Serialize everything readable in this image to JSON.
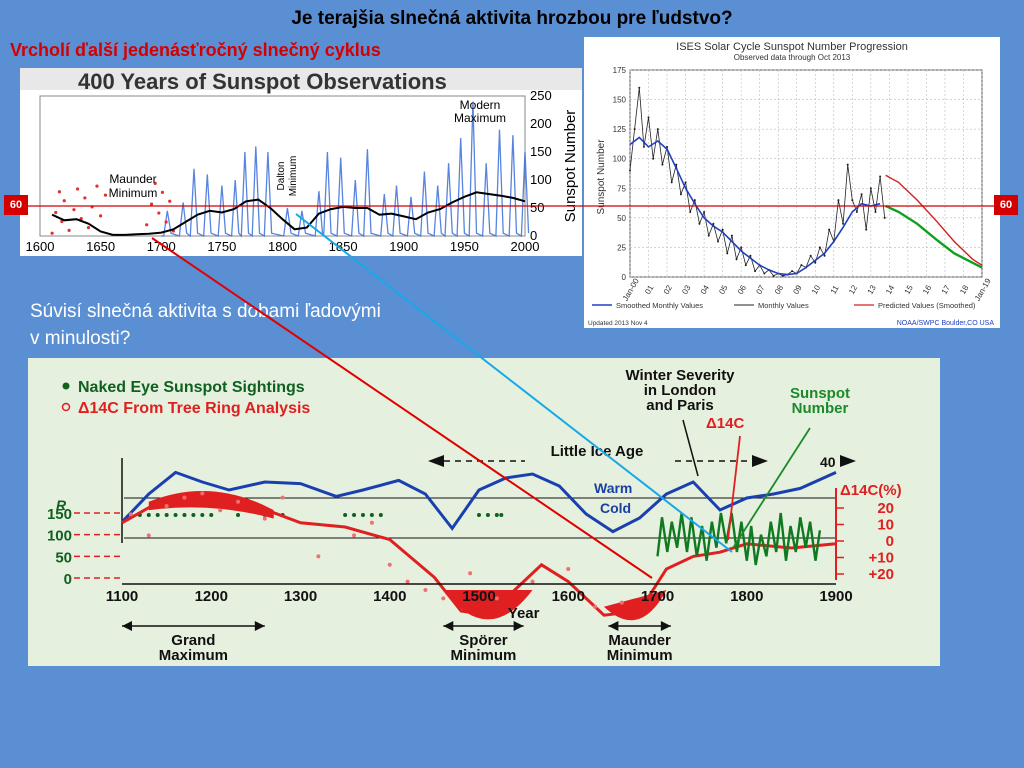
{
  "slide": {
    "title": "Je terajšia slnečná aktivita hrozbou pre ľudstvo?",
    "subtitle": "Vrcholí ďalší jedenásťročný slnečný cyklus",
    "question_line1": "Súvisí slnečná aktivita s dobami ľadovými",
    "question_line2": "v minulosti?",
    "marker_label": "60",
    "colors": {
      "background": "#5b8fd4",
      "subtitle": "#d40000",
      "marker": "#d40000",
      "arrow_red": "#e00000",
      "arrow_blue": "#18a8e8"
    }
  },
  "chart_data": [
    {
      "type": "line",
      "title": "400 Years of Sunspot Observations",
      "ylabel": "Sunspot Number",
      "xlim": [
        1600,
        2000
      ],
      "ylim": [
        0,
        250
      ],
      "x_ticks": [
        "1600",
        "1650",
        "1700",
        "1750",
        "1800",
        "1850",
        "1900",
        "1950",
        "2000"
      ],
      "y_ticks": [
        "0",
        "50",
        "100",
        "150",
        "200",
        "250"
      ],
      "annotations": [
        {
          "text": "Maunder",
          "x": 1660
        },
        {
          "text": "Minimum",
          "x": 1660
        },
        {
          "text": "Dalton",
          "x": 1810
        },
        {
          "text": "Minimum",
          "x": 1810
        },
        {
          "text": "Modern",
          "x": 1960
        },
        {
          "text": "Maximum",
          "x": 1960
        }
      ],
      "smoothed_x": [
        1610,
        1620,
        1630,
        1640,
        1650,
        1660,
        1670,
        1680,
        1690,
        1700,
        1710,
        1720,
        1730,
        1740,
        1750,
        1760,
        1770,
        1780,
        1790,
        1800,
        1810,
        1820,
        1830,
        1840,
        1850,
        1860,
        1870,
        1880,
        1890,
        1900,
        1910,
        1920,
        1930,
        1940,
        1950,
        1960,
        1970,
        1980,
        1990,
        2000
      ],
      "smoothed_y": [
        38,
        28,
        30,
        22,
        8,
        2,
        2,
        3,
        4,
        6,
        12,
        25,
        38,
        45,
        42,
        48,
        62,
        65,
        50,
        30,
        12,
        15,
        40,
        48,
        52,
        50,
        50,
        38,
        40,
        35,
        30,
        42,
        48,
        60,
        70,
        78,
        75,
        72,
        68,
        62
      ],
      "cycle_peaks": [
        [
          1705,
          45
        ],
        [
          1718,
          60
        ],
        [
          1727,
          120
        ],
        [
          1738,
          110
        ],
        [
          1750,
          90
        ],
        [
          1761,
          100
        ],
        [
          1769,
          150
        ],
        [
          1778,
          160
        ],
        [
          1788,
          150
        ],
        [
          1804,
          50
        ],
        [
          1816,
          45
        ],
        [
          1830,
          80
        ],
        [
          1837,
          150
        ],
        [
          1848,
          140
        ],
        [
          1860,
          100
        ],
        [
          1870,
          155
        ],
        [
          1884,
          75
        ],
        [
          1894,
          90
        ],
        [
          1906,
          70
        ],
        [
          1917,
          115
        ],
        [
          1928,
          90
        ],
        [
          1937,
          130
        ],
        [
          1947,
          175
        ],
        [
          1957,
          240
        ],
        [
          1968,
          130
        ],
        [
          1979,
          190
        ],
        [
          1990,
          180
        ],
        [
          2000,
          150
        ]
      ],
      "early_points_x": [
        1610,
        1613,
        1616,
        1618,
        1620,
        1624,
        1628,
        1631,
        1634,
        1637,
        1640,
        1643,
        1647,
        1650,
        1654,
        1688,
        1692,
        1695,
        1698,
        1701,
        1704,
        1707,
        1710
      ]
    },
    {
      "type": "line",
      "title": "ISES Solar Cycle Sunspot Number Progression",
      "subtitle": "Observed data through Oct 2013",
      "ylabel": "Sunspot Number",
      "ylim": [
        0,
        175
      ],
      "y_ticks": [
        "0",
        "25",
        "50",
        "75",
        "100",
        "125",
        "150",
        "175"
      ],
      "x_ticks": [
        "Jan-00",
        "01",
        "02",
        "03",
        "04",
        "05",
        "06",
        "07",
        "08",
        "09",
        "10",
        "11",
        "12",
        "13",
        "14",
        "15",
        "16",
        "17",
        "18",
        "Jan-19"
      ],
      "legend": [
        "Smoothed Monthly Values",
        "Monthly Values",
        "Predicted Values (Smoothed)"
      ],
      "footer_left": "Updated 2013 Nov 4",
      "footer_right": "NOAA/SWPC Boulder,CO USA",
      "smoothed": [
        [
          0,
          112
        ],
        [
          0.5,
          118
        ],
        [
          1,
          110
        ],
        [
          1.5,
          115
        ],
        [
          2,
          108
        ],
        [
          2.5,
          92
        ],
        [
          3,
          75
        ],
        [
          3.5,
          62
        ],
        [
          4,
          50
        ],
        [
          4.5,
          43
        ],
        [
          5,
          38
        ],
        [
          5.5,
          30
        ],
        [
          6,
          22
        ],
        [
          6.5,
          16
        ],
        [
          7,
          10
        ],
        [
          7.5,
          6
        ],
        [
          8,
          3
        ],
        [
          8.5,
          2
        ],
        [
          9,
          3
        ],
        [
          9.5,
          8
        ],
        [
          10,
          14
        ],
        [
          10.5,
          20
        ],
        [
          11,
          30
        ],
        [
          11.5,
          42
        ],
        [
          12,
          55
        ],
        [
          12.5,
          62
        ],
        [
          13,
          60
        ],
        [
          13.5,
          62
        ]
      ],
      "monthly": [
        [
          0,
          90
        ],
        [
          0.25,
          125
        ],
        [
          0.5,
          160
        ],
        [
          0.75,
          110
        ],
        [
          1,
          135
        ],
        [
          1.25,
          100
        ],
        [
          1.5,
          125
        ],
        [
          1.75,
          95
        ],
        [
          2,
          110
        ],
        [
          2.25,
          80
        ],
        [
          2.5,
          95
        ],
        [
          2.75,
          70
        ],
        [
          3,
          80
        ],
        [
          3.25,
          55
        ],
        [
          3.5,
          65
        ],
        [
          3.75,
          45
        ],
        [
          4,
          55
        ],
        [
          4.25,
          35
        ],
        [
          4.5,
          45
        ],
        [
          4.75,
          30
        ],
        [
          5,
          40
        ],
        [
          5.25,
          20
        ],
        [
          5.5,
          35
        ],
        [
          5.75,
          15
        ],
        [
          6,
          25
        ],
        [
          6.25,
          10
        ],
        [
          6.5,
          18
        ],
        [
          6.75,
          5
        ],
        [
          7,
          10
        ],
        [
          7.25,
          3
        ],
        [
          7.5,
          6
        ],
        [
          7.75,
          1
        ],
        [
          8,
          3
        ],
        [
          8.25,
          1
        ],
        [
          8.5,
          2
        ],
        [
          8.75,
          5
        ],
        [
          9,
          3
        ],
        [
          9.25,
          10
        ],
        [
          9.5,
          8
        ],
        [
          9.75,
          18
        ],
        [
          10,
          12
        ],
        [
          10.25,
          25
        ],
        [
          10.5,
          18
        ],
        [
          10.75,
          40
        ],
        [
          11,
          30
        ],
        [
          11.25,
          65
        ],
        [
          11.5,
          45
        ],
        [
          11.75,
          95
        ],
        [
          12,
          65
        ],
        [
          12.25,
          55
        ],
        [
          12.5,
          70
        ],
        [
          12.75,
          40
        ],
        [
          13,
          75
        ],
        [
          13.25,
          55
        ],
        [
          13.5,
          85
        ],
        [
          13.75,
          50
        ]
      ],
      "predicted_red": [
        [
          13.8,
          86
        ],
        [
          14.5,
          80
        ],
        [
          15.5,
          65
        ],
        [
          16.5,
          48
        ],
        [
          17.5,
          30
        ],
        [
          18.5,
          15
        ],
        [
          19,
          10
        ]
      ],
      "predicted_green": [
        [
          13.8,
          60
        ],
        [
          14.5,
          55
        ],
        [
          15.5,
          45
        ],
        [
          16.5,
          32
        ],
        [
          17.5,
          20
        ],
        [
          18.5,
          12
        ],
        [
          19,
          8
        ]
      ]
    },
    {
      "type": "line",
      "legend": [
        "Naked Eye Sunspot Sightings",
        "Δ14C From Tree Ring Analysis"
      ],
      "xlabel": "Year",
      "xlim": [
        1100,
        1900
      ],
      "x_ticks": [
        "1100",
        "1200",
        "1300",
        "1400",
        "1500",
        "1600",
        "1700",
        "1800",
        "1900"
      ],
      "left_axis_label": "R",
      "left_ticks": [
        "150",
        "100",
        "50",
        "0"
      ],
      "right_axis_label": "Δ14C(%)",
      "right_ticks": [
        "20",
        "10",
        "0",
        "+10",
        "+20"
      ],
      "annotations": {
        "winter_severity": [
          "Winter Severity",
          "in London",
          "and Paris"
        ],
        "sunspot_number": [
          "Sunspot",
          "Number"
        ],
        "delta14c": "Δ14C",
        "little_ice_age": "Little Ice Age",
        "warm": "Warm",
        "cold": "Cold",
        "forty": "40"
      },
      "periods": [
        {
          "line1": "Grand",
          "line2": "Maximum",
          "from": 1100,
          "to": 1260
        },
        {
          "line1": "Spörer",
          "line2": "Minimum",
          "from": 1460,
          "to": 1550
        },
        {
          "line1": "Maunder",
          "line2": "Minimum",
          "from": 1645,
          "to": 1715
        }
      ],
      "winter_curve": [
        [
          1100,
          0.2
        ],
        [
          1130,
          0.55
        ],
        [
          1160,
          0.82
        ],
        [
          1190,
          0.7
        ],
        [
          1220,
          0.6
        ],
        [
          1260,
          0.7
        ],
        [
          1300,
          0.68
        ],
        [
          1340,
          0.52
        ],
        [
          1370,
          0.6
        ],
        [
          1410,
          0.72
        ],
        [
          1440,
          0.55
        ],
        [
          1470,
          0.12
        ],
        [
          1500,
          0.6
        ],
        [
          1530,
          0.75
        ],
        [
          1560,
          0.8
        ],
        [
          1590,
          0.65
        ],
        [
          1620,
          0.3
        ],
        [
          1650,
          0.08
        ],
        [
          1680,
          0.25
        ],
        [
          1710,
          0.55
        ],
        [
          1740,
          0.7
        ],
        [
          1770,
          0.35
        ],
        [
          1800,
          0.5
        ],
        [
          1830,
          0.55
        ],
        [
          1860,
          0.62
        ],
        [
          1900,
          0.82
        ]
      ],
      "c14_curve": [
        [
          1100,
          6
        ],
        [
          1150,
          12
        ],
        [
          1200,
          13
        ],
        [
          1250,
          10
        ],
        [
          1300,
          6
        ],
        [
          1350,
          5
        ],
        [
          1400,
          2
        ],
        [
          1450,
          -7
        ],
        [
          1480,
          -15
        ],
        [
          1510,
          -16
        ],
        [
          1540,
          -10
        ],
        [
          1570,
          -4
        ],
        [
          1600,
          -8
        ],
        [
          1640,
          -16
        ],
        [
          1680,
          -15
        ],
        [
          1710,
          -5
        ],
        [
          1740,
          -2
        ],
        [
          1770,
          -1
        ],
        [
          1800,
          1
        ],
        [
          1850,
          0
        ],
        [
          1900,
          1
        ]
      ],
      "naked_eye_sightings": [
        1110,
        1120,
        1130,
        1140,
        1150,
        1160,
        1170,
        1180,
        1190,
        1200,
        1230,
        1260,
        1280,
        1350,
        1360,
        1370,
        1380,
        1390,
        1500,
        1510,
        1520,
        1525
      ],
      "c14_points": [
        [
          1110,
          8
        ],
        [
          1130,
          3
        ],
        [
          1150,
          10
        ],
        [
          1170,
          12
        ],
        [
          1190,
          13
        ],
        [
          1210,
          9
        ],
        [
          1230,
          11
        ],
        [
          1260,
          7
        ],
        [
          1280,
          12
        ],
        [
          1320,
          -2
        ],
        [
          1360,
          3
        ],
        [
          1380,
          6
        ],
        [
          1400,
          -4
        ],
        [
          1420,
          -8
        ],
        [
          1440,
          -10
        ],
        [
          1460,
          -12
        ],
        [
          1490,
          -6
        ],
        [
          1520,
          -12
        ],
        [
          1560,
          -8
        ],
        [
          1600,
          -5
        ],
        [
          1630,
          -14
        ],
        [
          1660,
          -13
        ]
      ],
      "sunspot_cycles": [
        [
          1700,
          50
        ],
        [
          1705,
          140
        ],
        [
          1711,
          60
        ],
        [
          1716,
          130
        ],
        [
          1722,
          70
        ],
        [
          1727,
          150
        ],
        [
          1733,
          60
        ],
        [
          1738,
          140
        ],
        [
          1744,
          50
        ],
        [
          1750,
          120
        ],
        [
          1755,
          40
        ],
        [
          1761,
          130
        ],
        [
          1766,
          70
        ],
        [
          1771,
          150
        ],
        [
          1777,
          80
        ],
        [
          1783,
          150
        ],
        [
          1789,
          60
        ],
        [
          1794,
          130
        ],
        [
          1800,
          40
        ],
        [
          1805,
          120
        ],
        [
          1810,
          30
        ],
        [
          1816,
          100
        ],
        [
          1822,
          50
        ],
        [
          1827,
          130
        ],
        [
          1833,
          60
        ],
        [
          1838,
          150
        ],
        [
          1844,
          40
        ],
        [
          1849,
          120
        ],
        [
          1855,
          60
        ],
        [
          1860,
          140
        ],
        [
          1866,
          70
        ],
        [
          1871,
          130
        ],
        [
          1877,
          40
        ],
        [
          1882,
          110
        ]
      ]
    }
  ]
}
